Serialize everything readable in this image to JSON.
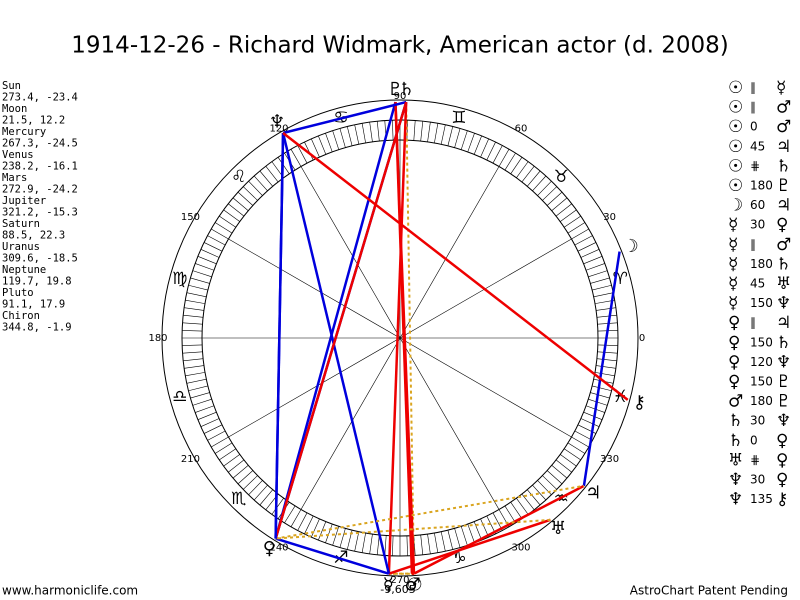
{
  "title": "1914-12-26 - Richard Widmark, American actor (d. 2008)",
  "planets": [
    {
      "name": "Sun",
      "glyph": "☉",
      "coords": "273.4, -23.4"
    },
    {
      "name": "Moon",
      "glyph": "☽",
      "coords": "21.5, 12.2"
    },
    {
      "name": "Mercury",
      "glyph": "☿",
      "coords": "267.3, -24.5"
    },
    {
      "name": "Venus",
      "glyph": "♀",
      "coords": "238.2, -16.1"
    },
    {
      "name": "Mars",
      "glyph": "♂",
      "coords": "272.9, -24.2"
    },
    {
      "name": "Jupiter",
      "glyph": "♃",
      "coords": "321.2, -15.3"
    },
    {
      "name": "Saturn",
      "glyph": "♄",
      "coords": "88.5, 22.3"
    },
    {
      "name": "Uranus",
      "glyph": "♅",
      "coords": "309.6, -18.5"
    },
    {
      "name": "Neptune",
      "glyph": "♆",
      "coords": "119.7, 19.8"
    },
    {
      "name": "Pluto",
      "glyph": "♇",
      "coords": "91.1, 17.9"
    },
    {
      "name": "Chiron",
      "glyph": "⚷",
      "coords": "344.8, -1.9"
    }
  ],
  "aspects": [
    {
      "from": "☉",
      "aspect": "∥",
      "to": "☿"
    },
    {
      "from": "☉",
      "aspect": "∥",
      "to": "♂"
    },
    {
      "from": "☉",
      "aspect": "0",
      "to": "♂"
    },
    {
      "from": "☉",
      "aspect": "45",
      "to": "♃"
    },
    {
      "from": "☉",
      "aspect": "⋕",
      "to": "♄"
    },
    {
      "from": "☉",
      "aspect": "180",
      "to": "♇"
    },
    {
      "from": "☽",
      "aspect": "60",
      "to": "♃"
    },
    {
      "from": "☿",
      "aspect": "30",
      "to": "♀"
    },
    {
      "from": "☿",
      "aspect": "∥",
      "to": "♂"
    },
    {
      "from": "☿",
      "aspect": "180",
      "to": "♄"
    },
    {
      "from": "☿",
      "aspect": "45",
      "to": "♅"
    },
    {
      "from": "☿",
      "aspect": "150",
      "to": "♆"
    },
    {
      "from": "♀",
      "aspect": "∥",
      "to": "♃"
    },
    {
      "from": "♀",
      "aspect": "150",
      "to": "♄"
    },
    {
      "from": "♀",
      "aspect": "120",
      "to": "♆"
    },
    {
      "from": "♀",
      "aspect": "150",
      "to": "♇"
    },
    {
      "from": "♂",
      "aspect": "180",
      "to": "♇"
    },
    {
      "from": "♄",
      "aspect": "30",
      "to": "♆"
    },
    {
      "from": "♄",
      "aspect": "0",
      "to": "♀"
    },
    {
      "from": "♅",
      "aspect": "⋕",
      "to": "♀"
    },
    {
      "from": "♆",
      "aspect": "30",
      "to": "♀"
    },
    {
      "from": "♆",
      "aspect": "135",
      "to": "⚷"
    }
  ],
  "wheel": {
    "degrees": [
      0,
      30,
      60,
      90,
      120,
      150,
      180,
      210,
      240,
      270,
      300,
      330
    ],
    "signs": [
      "♈",
      "♉",
      "♊",
      "♋",
      "♌",
      "♍",
      "♎",
      "♏",
      "♐",
      "♑",
      "♒",
      "♓"
    ]
  },
  "bottom_note": "-9,605",
  "footer": {
    "left": "www.harmoniclife.com",
    "right": "AstroChart Patent Pending"
  }
}
